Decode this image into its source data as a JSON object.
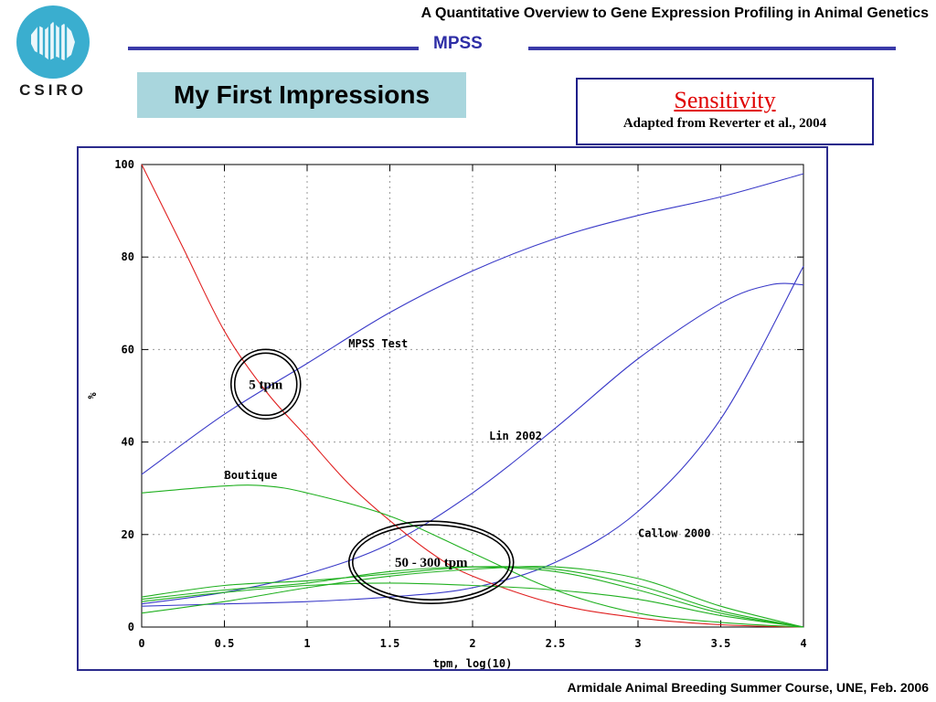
{
  "header": {
    "title": "A Quantitative Overview to Gene Expression Profiling in Animal Genetics",
    "section": "MPSS",
    "logo_text": "CSIRO"
  },
  "banner": {
    "title": "My First Impressions"
  },
  "source_box": {
    "title": "Sensitivity",
    "subtitle": "Adapted from Reverter et al., 2004"
  },
  "footer": {
    "text": "Armidale Animal Breeding Summer Course, UNE, Feb. 2006"
  },
  "colors": {
    "blue": "#3a3ac8",
    "red": "#e02020",
    "green": "#20b020",
    "frame": "#2b2b8c",
    "banner": "#a9d6dd"
  },
  "chart_data": {
    "type": "line",
    "xlabel": "tpm, log(10)",
    "ylabel": "%",
    "xlim": [
      0,
      4
    ],
    "ylim": [
      0,
      100
    ],
    "x_ticks": [
      "0",
      "0.5",
      "1",
      "1.5",
      "2",
      "2.5",
      "3",
      "3.5",
      "4"
    ],
    "y_ticks": [
      "0",
      "20",
      "40",
      "60",
      "80",
      "100"
    ],
    "grid": true,
    "series": [
      {
        "name": "MPSS Test",
        "color": "#3a3ac8",
        "label_at": [
          1.25,
          60.5
        ],
        "x": [
          0,
          0.5,
          1,
          1.5,
          2,
          2.5,
          3,
          3.5,
          4
        ],
        "y": [
          33,
          46,
          57,
          68,
          77,
          84,
          89,
          93,
          98
        ]
      },
      {
        "name": "Lin 2002",
        "color": "#3a3ac8",
        "label_at": [
          2.1,
          40.5
        ],
        "x": [
          0,
          0.5,
          1,
          1.5,
          2,
          2.5,
          3,
          3.5,
          3.8,
          4
        ],
        "y": [
          5,
          7.5,
          11.5,
          18,
          29,
          43,
          58,
          70,
          74,
          74
        ]
      },
      {
        "name": "Callow 2000",
        "color": "#3a3ac8",
        "label_at": [
          3.0,
          19.5
        ],
        "x": [
          0,
          0.5,
          1,
          1.5,
          2,
          2.5,
          3,
          3.5,
          4
        ],
        "y": [
          4.5,
          5,
          5.5,
          6.5,
          8.5,
          14,
          25,
          45,
          78
        ]
      },
      {
        "name": "",
        "color": "#e02020",
        "x": [
          0,
          0.25,
          0.5,
          0.75,
          1,
          1.25,
          1.5,
          1.75,
          2,
          2.5,
          3,
          3.5,
          4
        ],
        "y": [
          100,
          82,
          64,
          51,
          41,
          31,
          23,
          16,
          11,
          5,
          2,
          0.5,
          0
        ]
      },
      {
        "name": "Boutique",
        "color": "#20b020",
        "label_at": [
          0.5,
          32
        ],
        "x": [
          0,
          0.5,
          0.75,
          1,
          1.5,
          2,
          2.5,
          3,
          3.5,
          4
        ],
        "y": [
          29,
          30.5,
          30.5,
          29,
          24,
          16,
          8,
          3,
          1,
          0
        ]
      },
      {
        "name": "",
        "color": "#20b020",
        "x": [
          0,
          0.5,
          1,
          1.5,
          2,
          2.5,
          3,
          3.5,
          4
        ],
        "y": [
          6.5,
          9,
          10,
          11.5,
          13,
          12.5,
          9,
          3.5,
          0
        ]
      },
      {
        "name": "",
        "color": "#20b020",
        "x": [
          0,
          0.5,
          1,
          1.5,
          2,
          2.5,
          3,
          3.5,
          4
        ],
        "y": [
          5.5,
          7.5,
          9,
          9.5,
          9,
          8,
          6,
          2.5,
          0
        ]
      },
      {
        "name": "",
        "color": "#20b020",
        "x": [
          0,
          0.5,
          1,
          1.5,
          2,
          2.5,
          3,
          3.5,
          4
        ],
        "y": [
          3,
          5.5,
          8.5,
          11,
          12.5,
          13,
          10.5,
          4.5,
          0
        ]
      },
      {
        "name": "",
        "color": "#20b020",
        "x": [
          0,
          0.5,
          1,
          1.5,
          2,
          2.5,
          3,
          3.5,
          4
        ],
        "y": [
          6,
          8,
          9.5,
          12,
          13,
          12,
          8,
          3,
          0
        ]
      }
    ],
    "annotations": [
      {
        "text": "5 tpm",
        "x": 0.75,
        "y": 52.5
      },
      {
        "text": "50 - 300 tpm",
        "x": 1.75,
        "y": 14
      }
    ]
  }
}
